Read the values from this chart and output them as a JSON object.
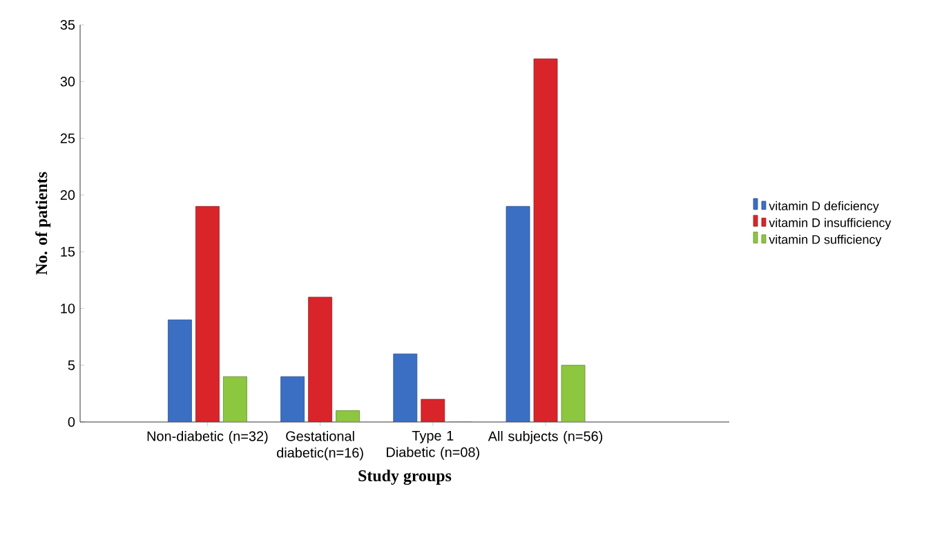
{
  "chart_data": {
    "type": "bar",
    "xlabel": "Study groups",
    "ylabel": "No. of patients",
    "categories": [
      "Non-diabetic (n=32)",
      "Gestational diabetic(n=16)",
      "Type 1 Diabetic (n=08)",
      "All subjects (n=56)"
    ],
    "series": [
      {
        "name": "vitamin D deficiency",
        "color": "#3a6fc4",
        "values": [
          9,
          4,
          6,
          19
        ]
      },
      {
        "name": "vitamin D insufficiency",
        "color": "#d9252a",
        "values": [
          19,
          11,
          2,
          32
        ]
      },
      {
        "name": "vitamin D sufficiency",
        "color": "#8dc63f",
        "values": [
          4,
          1,
          0,
          5
        ]
      }
    ],
    "ylim": [
      0,
      35
    ],
    "yticks": [
      0,
      5,
      10,
      15,
      20,
      25,
      30,
      35
    ],
    "legend": "right",
    "grid": false
  }
}
